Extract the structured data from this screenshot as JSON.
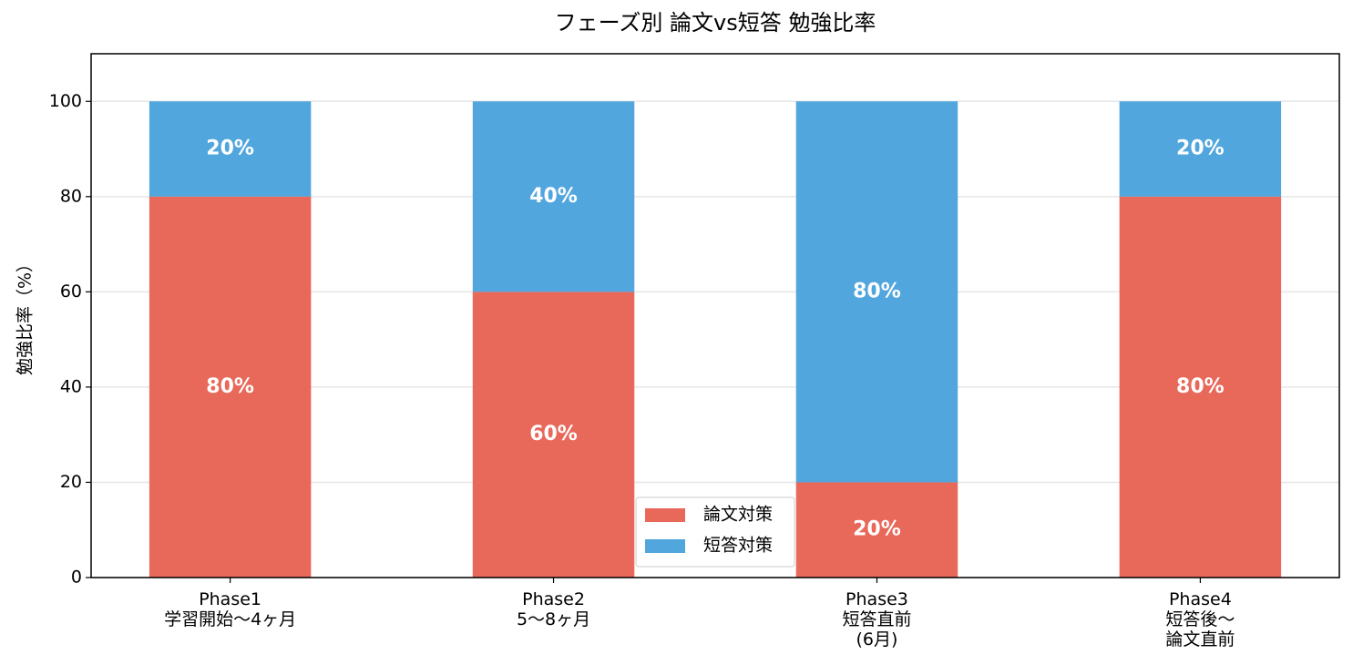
{
  "chart_data": {
    "type": "stacked_bar",
    "title": "フェーズ別 論文vs短答 勉強比率",
    "y_label": "勉強比率（%）",
    "categories": [
      "Phase1\n学習開始〜4ヶ月",
      "Phase2\n5〜8ヶ月",
      "Phase3\n短答直前\n(6月)",
      "Phase4\n短答後〜\n論文直前"
    ],
    "series": [
      {
        "name": "論文対策",
        "color": "#e8685a",
        "values": [
          80,
          60,
          20,
          80
        ],
        "value_labels": [
          "80%",
          "60%",
          "20%",
          "80%"
        ]
      },
      {
        "name": "短答対策",
        "color": "#52a6de",
        "values": [
          20,
          40,
          80,
          20
        ],
        "value_labels": [
          "20%",
          "40%",
          "80%",
          "20%"
        ]
      }
    ],
    "ylim": [
      0,
      110
    ],
    "yticks": [
      0,
      20,
      40,
      60,
      80,
      100
    ],
    "grid": true,
    "legend": "lower center"
  }
}
